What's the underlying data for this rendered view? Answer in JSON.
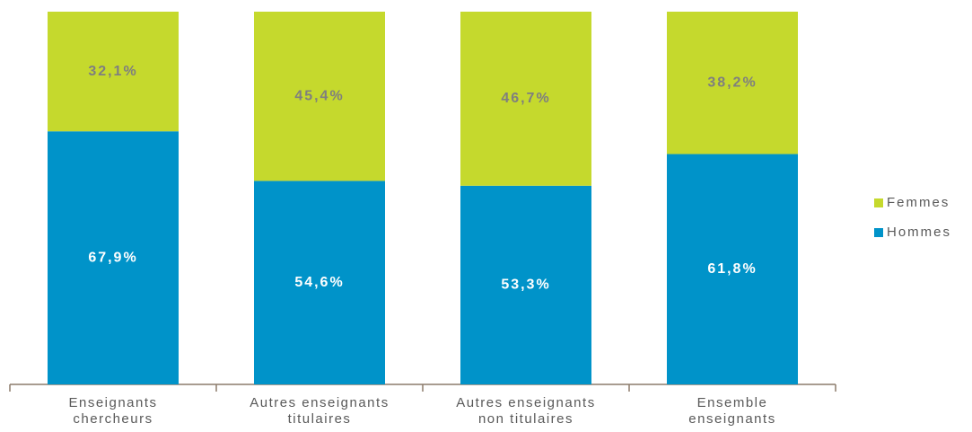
{
  "chart_data": {
    "type": "stacked_bar",
    "categories": [
      "Enseignants\nchercheurs",
      "Autres enseignants\ntitulaires",
      "Autres enseignants\nnon titulaires",
      "Ensemble\nenseignants"
    ],
    "series": [
      {
        "name": "Hommes",
        "color": "#0093c9",
        "values": [
          67.9,
          54.6,
          53.3,
          61.8
        ],
        "value_labels": [
          "67,9%",
          "54,6%",
          "53,3%",
          "61,8%"
        ]
      },
      {
        "name": "Femmes",
        "color": "#c5d92d",
        "values": [
          32.1,
          45.4,
          46.7,
          38.2
        ],
        "value_labels": [
          "32,1%",
          "45,4%",
          "46,7%",
          "38,2%"
        ]
      }
    ],
    "legend": "right"
  }
}
